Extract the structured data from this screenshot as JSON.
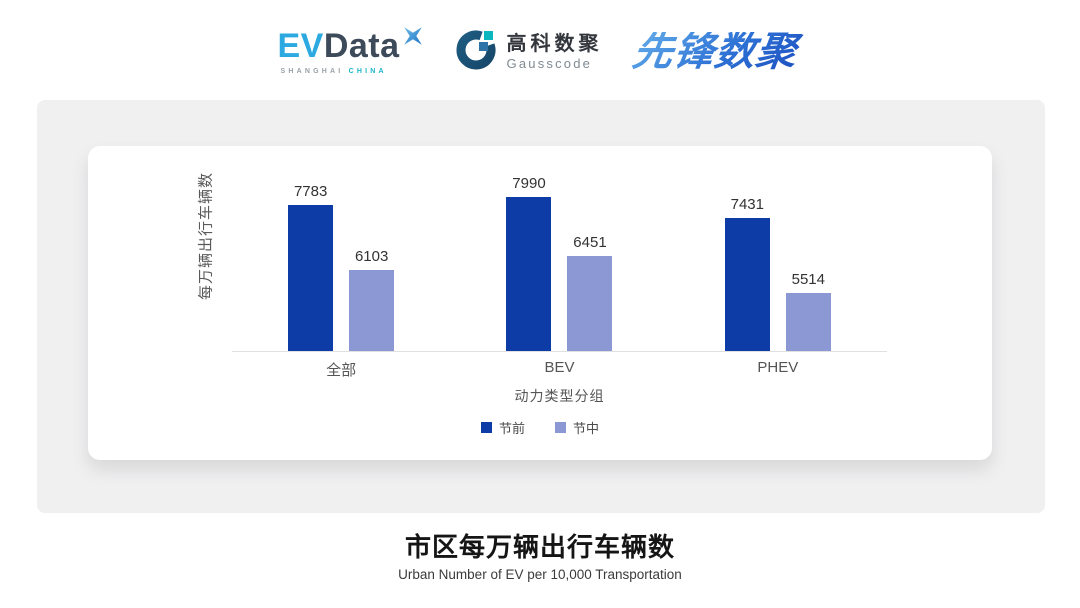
{
  "logos": {
    "evdata": {
      "ev": "EV",
      "data": "Data",
      "sub_left": "SHANGHAI",
      "sub_right": "CHINA"
    },
    "gausscode": {
      "cn": "高科数聚",
      "en": "Gausscode"
    },
    "pioneer": {
      "text": "先锋数聚"
    }
  },
  "chart_data": {
    "type": "bar",
    "categories": [
      "全部",
      "BEV",
      "PHEV"
    ],
    "series": [
      {
        "name": "节前",
        "color": "#0D3CA6",
        "values": [
          7783,
          7990,
          7431
        ]
      },
      {
        "name": "节中",
        "color": "#8C98D3",
        "values": [
          6103,
          6451,
          5514
        ]
      }
    ],
    "xlabel": "动力类型分组",
    "ylabel": "每万辆出行车辆数",
    "ylim": [
      4000,
      8400
    ],
    "grid": false,
    "legend_position": "bottom",
    "value_labels": true
  },
  "footer": {
    "title": "市区每万辆出行车辆数",
    "subtitle": "Urban Number of EV per 10,000 Transportation"
  },
  "colors": {
    "series_pre": "#0D3CA6",
    "series_mid": "#8C98D3",
    "panel_bg": "#F0F0F1",
    "axis_line": "#E0E0E0",
    "evdata_blue": "#2BA9E0",
    "evdata_dark": "#3D4A5A",
    "gausscode_teal": "#0CB6BF",
    "pioneer_blue": "#2E72D5"
  }
}
